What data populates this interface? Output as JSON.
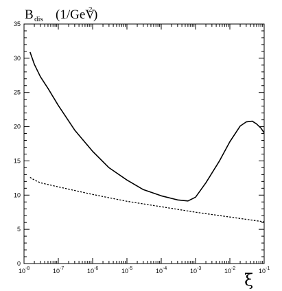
{
  "chart_data": {
    "type": "line",
    "title": {
      "symbol": "B",
      "subscript": "dis",
      "unit_open": "(1/GeV",
      "unit_sup": "2",
      "unit_close": ")"
    },
    "xlabel": "ξ",
    "ylabel": "",
    "x_scale": "log",
    "xlim": [
      1e-08,
      0.1
    ],
    "ylim": [
      0,
      35
    ],
    "x_ticks": [
      {
        "value": 1e-08,
        "base": "10",
        "exp": "-8"
      },
      {
        "value": 1e-07,
        "base": "10",
        "exp": "-7"
      },
      {
        "value": 1e-06,
        "base": "10",
        "exp": "-6"
      },
      {
        "value": 1e-05,
        "base": "10",
        "exp": "-5"
      },
      {
        "value": 0.0001,
        "base": "10",
        "exp": "-4"
      },
      {
        "value": 0.001,
        "base": "10",
        "exp": "-3"
      },
      {
        "value": 0.01,
        "base": "10",
        "exp": "-2"
      },
      {
        "value": 0.1,
        "base": "10",
        "exp": "-1"
      }
    ],
    "y_ticks": [
      "0",
      "5",
      "10",
      "15",
      "20",
      "25",
      "30",
      "35"
    ],
    "grid": false,
    "series": [
      {
        "style": "solid",
        "x": [
          1.5e-08,
          2e-08,
          3e-08,
          5e-08,
          1e-07,
          3e-07,
          1e-06,
          3e-06,
          1e-05,
          3e-05,
          0.0001,
          0.0003,
          0.0006,
          0.001,
          0.002,
          0.005,
          0.01,
          0.02,
          0.03,
          0.045,
          0.06,
          0.08,
          0.1
        ],
        "y": [
          30.9,
          29.1,
          27.3,
          25.6,
          23.1,
          19.5,
          16.4,
          14.0,
          12.2,
          10.8,
          9.9,
          9.3,
          9.15,
          9.7,
          11.8,
          15.0,
          17.8,
          20.1,
          20.7,
          20.8,
          20.4,
          19.8,
          19.1
        ]
      },
      {
        "style": "dotted",
        "x": [
          1.5e-08,
          2e-08,
          3e-08,
          1e-07,
          1e-06,
          1e-05,
          0.0001,
          0.001,
          0.01,
          0.1
        ],
        "y": [
          12.6,
          12.2,
          11.8,
          11.2,
          10.1,
          9.1,
          8.3,
          7.5,
          6.8,
          6.1
        ]
      }
    ]
  }
}
